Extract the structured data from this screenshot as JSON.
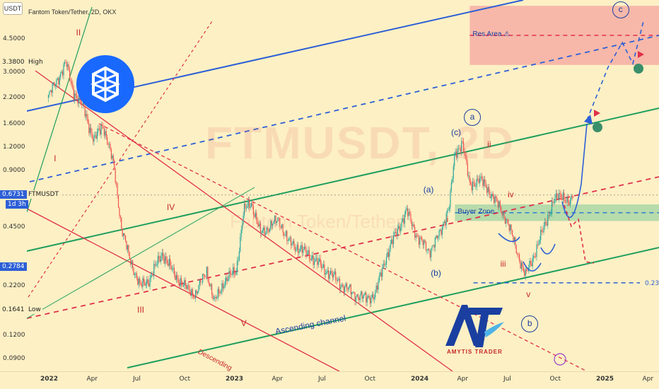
{
  "chart_data": {
    "type": "candlestick",
    "title": "Fantom Token/Tether, 2D, OKX",
    "symbol": "FTMUSDT",
    "watermark": "FTMUSDT, 2D",
    "watermark_sub": "Fantom Token/Tether",
    "currency": "USDT",
    "yscale": "log",
    "ylim": [
      0.078,
      7.3
    ],
    "y_ticks": [
      {
        "label": "4.5000",
        "value": 4.5
      },
      {
        "label": "3.0000",
        "value": 3.0
      },
      {
        "label": "2.2000",
        "value": 2.2
      },
      {
        "label": "1.6000",
        "value": 1.6
      },
      {
        "label": "1.2000",
        "value": 1.2
      },
      {
        "label": "0.9000",
        "value": 0.9
      },
      {
        "label": "0.4500",
        "value": 0.45
      },
      {
        "label": "0.2200",
        "value": 0.22
      },
      {
        "label": "0.1200",
        "value": 0.12
      },
      {
        "label": "0.0900",
        "value": 0.09
      }
    ],
    "x_ticks": [
      {
        "label": "2022",
        "t": 0.0,
        "major": true
      },
      {
        "label": "Apr",
        "t": 0.25,
        "major": false
      },
      {
        "label": "Jul",
        "t": 0.5,
        "major": false
      },
      {
        "label": "Oct",
        "t": 0.75,
        "major": false
      },
      {
        "label": "2023",
        "t": 1.0,
        "major": true
      },
      {
        "label": "Apr",
        "t": 1.25,
        "major": false
      },
      {
        "label": "Jul",
        "t": 1.5,
        "major": false
      },
      {
        "label": "Oct",
        "t": 1.75,
        "major": false
      },
      {
        "label": "2024",
        "t": 2.0,
        "major": true
      },
      {
        "label": "Apr",
        "t": 2.25,
        "major": false
      },
      {
        "label": "Jul",
        "t": 2.5,
        "major": false
      },
      {
        "label": "Oct",
        "t": 2.75,
        "major": false
      },
      {
        "label": "2025",
        "t": 3.0,
        "major": true
      },
      {
        "label": "Apr",
        "t": 3.25,
        "major": false
      }
    ],
    "price_tags": [
      {
        "label": "3.3800",
        "value": 3.38,
        "side": "High"
      },
      {
        "label": "0.6731",
        "value": 0.6731,
        "side": "FTMUSDT",
        "sub": "1d 3h"
      },
      {
        "label": "0.2784",
        "value": 0.2784,
        "side": ""
      },
      {
        "label": "0.1641",
        "value": 0.1641,
        "side": "Low"
      }
    ],
    "price_path": [
      {
        "t": 0.0,
        "p": 2.2
      },
      {
        "t": 0.04,
        "p": 2.6
      },
      {
        "t": 0.1,
        "p": 3.38
      },
      {
        "t": 0.14,
        "p": 2.4
      },
      {
        "t": 0.2,
        "p": 1.9
      },
      {
        "t": 0.25,
        "p": 1.3
      },
      {
        "t": 0.3,
        "p": 1.6
      },
      {
        "t": 0.36,
        "p": 0.95
      },
      {
        "t": 0.4,
        "p": 0.45
      },
      {
        "t": 0.44,
        "p": 0.32
      },
      {
        "t": 0.5,
        "p": 0.22
      },
      {
        "t": 0.55,
        "p": 0.24
      },
      {
        "t": 0.62,
        "p": 0.33
      },
      {
        "t": 0.68,
        "p": 0.26
      },
      {
        "t": 0.74,
        "p": 0.22
      },
      {
        "t": 0.8,
        "p": 0.2
      },
      {
        "t": 0.86,
        "p": 0.27
      },
      {
        "t": 0.9,
        "p": 0.18
      },
      {
        "t": 0.95,
        "p": 0.23
      },
      {
        "t": 1.02,
        "p": 0.27
      },
      {
        "t": 1.06,
        "p": 0.55
      },
      {
        "t": 1.1,
        "p": 0.62
      },
      {
        "t": 1.15,
        "p": 0.42
      },
      {
        "t": 1.2,
        "p": 0.46
      },
      {
        "t": 1.25,
        "p": 0.5
      },
      {
        "t": 1.3,
        "p": 0.38
      },
      {
        "t": 1.36,
        "p": 0.35
      },
      {
        "t": 1.42,
        "p": 0.32
      },
      {
        "t": 1.48,
        "p": 0.28
      },
      {
        "t": 1.54,
        "p": 0.25
      },
      {
        "t": 1.6,
        "p": 0.22
      },
      {
        "t": 1.66,
        "p": 0.2
      },
      {
        "t": 1.72,
        "p": 0.19
      },
      {
        "t": 1.77,
        "p": 0.2
      },
      {
        "t": 1.82,
        "p": 0.3
      },
      {
        "t": 1.88,
        "p": 0.42
      },
      {
        "t": 1.94,
        "p": 0.55
      },
      {
        "t": 2.0,
        "p": 0.4
      },
      {
        "t": 2.06,
        "p": 0.34
      },
      {
        "t": 2.12,
        "p": 0.42
      },
      {
        "t": 2.17,
        "p": 0.6
      },
      {
        "t": 2.2,
        "p": 1.1
      },
      {
        "t": 2.24,
        "p": 1.3
      },
      {
        "t": 2.28,
        "p": 0.75
      },
      {
        "t": 2.33,
        "p": 0.82
      },
      {
        "t": 2.38,
        "p": 0.72
      },
      {
        "t": 2.43,
        "p": 0.6
      },
      {
        "t": 2.48,
        "p": 0.5
      },
      {
        "t": 2.53,
        "p": 0.35
      },
      {
        "t": 2.58,
        "p": 0.25
      },
      {
        "t": 2.63,
        "p": 0.33
      },
      {
        "t": 2.68,
        "p": 0.45
      },
      {
        "t": 2.73,
        "p": 0.62
      },
      {
        "t": 2.78,
        "p": 0.68
      },
      {
        "t": 2.82,
        "p": 0.6
      },
      {
        "t": 2.84,
        "p": 0.6731
      }
    ],
    "zones": [
      {
        "name": "Res Area",
        "from": 3.3,
        "to": 6.8,
        "t_from": 2.28,
        "t_to": 3.4,
        "color": "#f4a6a0"
      },
      {
        "name": "Buyer Zone",
        "from": 0.49,
        "to": 0.6,
        "t_from": 2.2,
        "t_to": 3.4,
        "color": "#9fd4a3"
      }
    ],
    "levels": [
      {
        "label": "0.23",
        "value": 0.23,
        "t_from": 2.3,
        "t_to": 3.4
      }
    ],
    "annotations": {
      "wave_red": [
        {
          "text": "I",
          "t": 0.05,
          "p": 1.05
        },
        {
          "text": "II",
          "t": 0.17,
          "p": 4.9
        },
        {
          "text": "III",
          "t": 0.5,
          "p": 0.165
        },
        {
          "text": "IV",
          "t": 0.66,
          "p": 0.58
        },
        {
          "text": "V",
          "t": 1.06,
          "p": 0.14
        },
        {
          "text": "i",
          "t": 2.17,
          "p": 0.5
        },
        {
          "text": "ii",
          "t": 2.39,
          "p": 1.25
        },
        {
          "text": "iii",
          "t": 2.46,
          "p": 0.29
        },
        {
          "text": "iv",
          "t": 2.5,
          "p": 0.68
        },
        {
          "text": "v",
          "t": 2.6,
          "p": 0.2
        }
      ],
      "wave_blue": [
        {
          "text": "(a)",
          "t": 2.06,
          "p": 0.72
        },
        {
          "text": "(b)",
          "t": 2.1,
          "p": 0.26
        },
        {
          "text": "(c)",
          "t": 2.21,
          "p": 1.45
        }
      ],
      "circled": [
        {
          "text": "a",
          "t": 2.29,
          "p": 1.75
        },
        {
          "text": "b",
          "t": 2.6,
          "p": 0.14
        },
        {
          "text": "c",
          "t": 3.09,
          "p": 6.5
        }
      ],
      "channel_label": "Ascending channel",
      "descending_label": "Descending",
      "brand": "AMYTIS TRADER"
    }
  }
}
